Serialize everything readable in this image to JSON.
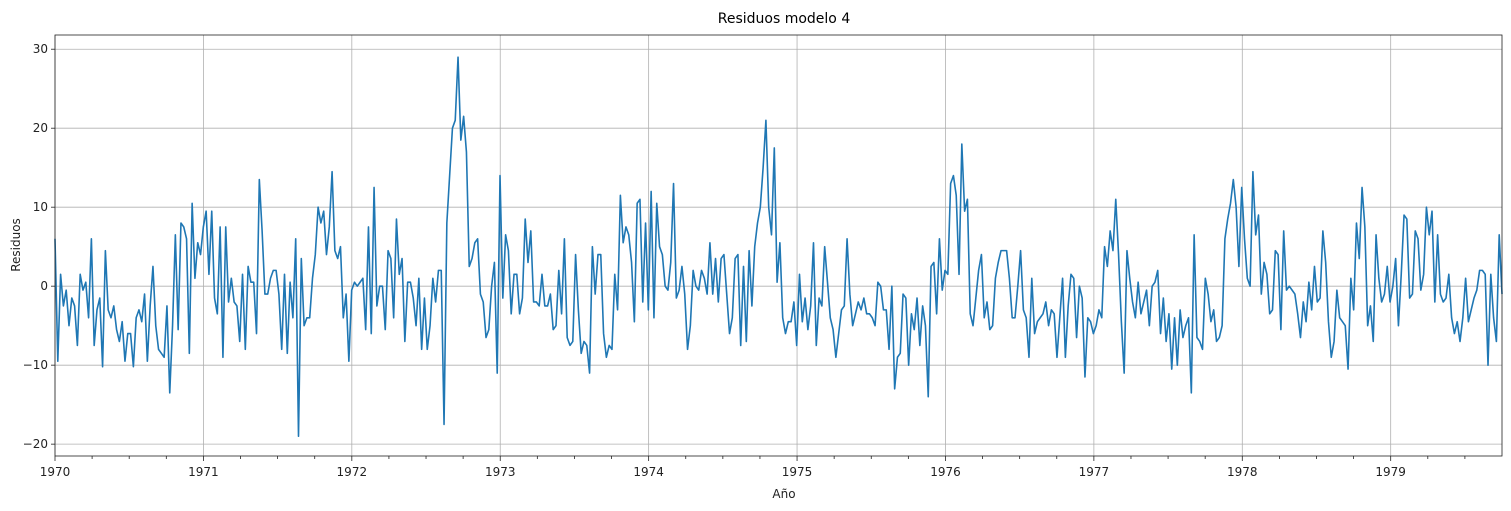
{
  "chart_data": {
    "type": "line",
    "title": "Residuos modelo 4",
    "xlabel": "Año",
    "ylabel": "Residuos",
    "x_axis": "date",
    "xlim": [
      "1970-01",
      "1979-10"
    ],
    "ylim": [
      -21.5,
      31.8
    ],
    "y_ticks": [
      -20,
      -10,
      0,
      10,
      20,
      30
    ],
    "x_ticks": [
      "1970",
      "1971",
      "1972",
      "1973",
      "1974",
      "1975",
      "1976",
      "1977",
      "1978",
      "1979"
    ],
    "grid": true,
    "series_color": "#1f77b4",
    "series": [
      {
        "frequency": "weekly",
        "start": "1970-01-01",
        "values": [
          6,
          -9.5,
          1.5,
          -2.5,
          -0.5,
          -5,
          -1.5,
          -2.5,
          -7.5,
          1.5,
          -0.5,
          0.5,
          -4,
          6,
          -7.5,
          -3,
          -1.5,
          -10.2,
          4.5,
          -3,
          -4,
          -2.5,
          -5.5,
          -7,
          -4.5,
          -9.5,
          -6,
          -6,
          -10.2,
          -4,
          -3,
          -4.5,
          -1,
          -9.5,
          -2.5,
          2.5,
          -5,
          -8,
          -8.5,
          -9,
          -2.5,
          -13.5,
          -5,
          6.5,
          -5.5,
          8,
          7.5,
          6,
          -8.5,
          10.5,
          1,
          5.5,
          4,
          7.5,
          9.5,
          1.5,
          9.5,
          -1.5,
          -3.5,
          7.5,
          -9,
          7.5,
          -2,
          1,
          -2,
          -2.5,
          -7,
          1.5,
          -8,
          2.5,
          0.5,
          0.5,
          -6,
          13.5,
          7,
          -1,
          -1,
          1,
          2,
          2,
          -1,
          -8,
          1.5,
          -8.5,
          0.5,
          -4,
          6,
          -19,
          3.5,
          -5,
          -4,
          -4,
          1,
          4,
          10,
          8,
          9.5,
          4,
          7.5,
          14.5,
          4.5,
          3.5,
          5,
          -4,
          -1,
          -9.5,
          -0.5,
          0.5,
          0,
          0.5,
          1,
          -5.5,
          7.5,
          -6,
          12.5,
          -2.5,
          0,
          0,
          -5.5,
          4.5,
          3.5,
          -4,
          8.5,
          1.5,
          3.5,
          -7,
          0.5,
          0.5,
          -1.5,
          -5,
          1,
          -8,
          -1.5,
          -8,
          -5,
          1,
          -2,
          2,
          2,
          -17.5,
          8,
          14,
          20,
          21,
          29,
          18.5,
          21.5,
          17,
          2.5,
          3.5,
          5.5,
          6,
          -1,
          -2,
          -6.5,
          -5.5,
          0,
          3,
          -11,
          14,
          -1.5,
          6.5,
          4.5,
          -3.5,
          1.5,
          1.5,
          -3.5,
          -1.5,
          8.5,
          3,
          7,
          -2,
          -2,
          -2.5,
          1.5,
          -2.5,
          -2.5,
          -1,
          -5.5,
          -5,
          2,
          -3.5,
          6,
          -6.5,
          -7.5,
          -7,
          4,
          -3,
          -8.5,
          -7,
          -7.5,
          -11,
          5,
          -1,
          4,
          4,
          -6,
          -9,
          -7.5,
          -8,
          1.5,
          -3,
          11.5,
          5.5,
          7.5,
          6.5,
          3,
          -4.5,
          10.5,
          11,
          -2,
          8,
          -3,
          12,
          -4,
          10.5,
          5,
          4,
          0,
          -0.5,
          3,
          13,
          -1.5,
          -0.5,
          2.5,
          -1,
          -8,
          -5,
          2,
          0,
          -0.5,
          2,
          1,
          -1,
          5.5,
          -1,
          3.5,
          -2,
          3.5,
          4,
          -1,
          -6,
          -4,
          3.5,
          4,
          -7.5,
          2.5,
          -7,
          4.5,
          -2.5,
          5,
          8,
          10,
          15,
          21,
          10,
          6.5,
          17.5,
          0.5,
          5.5,
          -4,
          -6,
          -4.5,
          -4.5,
          -2,
          -7.5,
          1.5,
          -4.5,
          -1.5,
          -5.5,
          -2.5,
          5.5,
          -7.5,
          -1.5,
          -2.5,
          5,
          0.5,
          -4,
          -5.5,
          -9,
          -6,
          -3,
          -2.5,
          6,
          -1,
          -5,
          -3.5,
          -2,
          -3,
          -1.5,
          -3.5,
          -3.5,
          -4,
          -5,
          0.5,
          0,
          -3,
          -3,
          -8,
          0,
          -13,
          -9,
          -8.5,
          -1,
          -1.5,
          -10,
          -3.5,
          -5.5,
          -1.5,
          -7.5,
          -2.5,
          -5,
          -14,
          2.5,
          3,
          -3.5,
          6,
          -0.5,
          2,
          1.5,
          13,
          14,
          11.5,
          1.5,
          18,
          9.5,
          11,
          -3.5,
          -5,
          -1.5,
          2,
          4,
          -4,
          -2,
          -5.5,
          -5,
          1,
          3,
          4.5,
          4.5,
          4.5,
          1,
          -4,
          -4,
          0,
          4.5,
          -3,
          -4,
          -9,
          1,
          -6,
          -4.5,
          -4,
          -3.5,
          -2,
          -5,
          -3,
          -3.5,
          -9,
          -4,
          1,
          -9,
          -2.5,
          1.5,
          1,
          -6.5,
          0,
          -1.5,
          -11.5,
          -4,
          -4.5,
          -6,
          -5,
          -3,
          -4,
          5,
          2.5,
          7,
          4.5,
          11,
          4,
          -4.5,
          -11,
          4.5,
          1,
          -2,
          -4,
          0.5,
          -3.5,
          -2,
          -0.5,
          -5,
          0,
          0.5,
          2,
          -6,
          -1.5,
          -7,
          -3.5,
          -10.5,
          -4,
          -10,
          -3,
          -6.5,
          -5,
          -4,
          -13.5,
          6.5,
          -6.5,
          -7,
          -8,
          1,
          -1,
          -4.5,
          -3,
          -7,
          -6.5,
          -5,
          6,
          8.5,
          10.5,
          13.5,
          10,
          2.5,
          12.5,
          6,
          1,
          0,
          14.5,
          6.5,
          9,
          -1,
          3,
          1.5,
          -3.5,
          -3,
          4.5,
          4,
          -5.5,
          7,
          -0.5,
          0,
          -0.5,
          -1,
          -3.5,
          -6.5,
          -2,
          -4.5,
          0.5,
          -3,
          2.5,
          -2,
          -1.5,
          7,
          3,
          -4.5,
          -9,
          -7,
          -0.5,
          -4,
          -4.5,
          -5,
          -10.5,
          1,
          -3,
          8,
          3.5,
          12.5,
          7.5,
          -5,
          -2.5,
          -7,
          6.5,
          1,
          -2,
          -1,
          2.5,
          -2,
          0,
          3.5,
          -5,
          1.5,
          9,
          8.5,
          -1.5,
          -1,
          7,
          6,
          -0.5,
          1.5,
          10,
          6.5,
          9.5,
          -2,
          6.5,
          -1,
          -2,
          -1.5,
          1.5,
          -4,
          -6,
          -4.5,
          -7,
          -4,
          1,
          -4.5,
          -3,
          -1.5,
          -0.5,
          2,
          2,
          1.5,
          -10,
          1.5,
          -4,
          -7,
          6.5,
          -1
        ]
      }
    ]
  }
}
